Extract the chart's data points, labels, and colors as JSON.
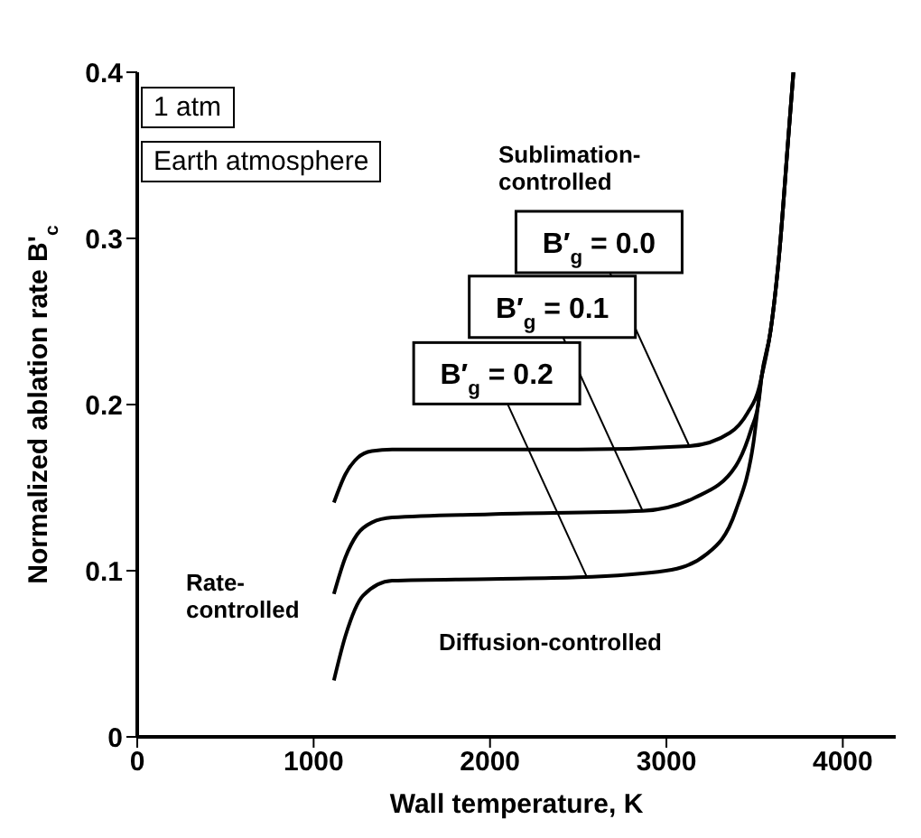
{
  "chart_data": {
    "type": "line",
    "xlabel": "Wall temperature,  K",
    "ylabel": "Normalized ablation rate B'$_{c}$",
    "xlim": [
      0,
      4300
    ],
    "xticks": [
      0,
      1000,
      2000,
      3000,
      4000
    ],
    "ylim": [
      0,
      0.4
    ],
    "yticks": [
      0,
      0.1,
      0.2,
      0.3,
      0.4
    ],
    "marker": "none",
    "line_style": "solid",
    "series": [
      {
        "color": "#000000",
        "x": [
          1115,
          1180,
          1250,
          1330,
          1445,
          1800,
          2500,
          3130,
          3360,
          3460,
          3525,
          3540,
          3590,
          3640,
          3690,
          3720
        ],
        "values": [
          0.141,
          0.158,
          0.168,
          0.172,
          0.173,
          0.173,
          0.173,
          0.175,
          0.183,
          0.195,
          0.21,
          0.217,
          0.244,
          0.291,
          0.359,
          0.4
        ]
      },
      {
        "color": "#000000",
        "x": [
          1115,
          1180,
          1248,
          1330,
          1445,
          2000,
          2865,
          3162,
          3393,
          3480,
          3525,
          3540,
          3590,
          3640,
          3690,
          3720
        ],
        "values": [
          0.086,
          0.108,
          0.122,
          0.129,
          0.132,
          0.134,
          0.136,
          0.144,
          0.163,
          0.185,
          0.203,
          0.217,
          0.244,
          0.291,
          0.359,
          0.4
        ]
      },
      {
        "color": "#000000",
        "x": [
          1115,
          1181,
          1280,
          1445,
          2000,
          2500,
          2997,
          3228,
          3393,
          3492,
          3540,
          3590,
          3640,
          3690,
          3720
        ],
        "values": [
          0.034,
          0.061,
          0.085,
          0.094,
          0.095,
          0.096,
          0.1,
          0.11,
          0.136,
          0.176,
          0.217,
          0.244,
          0.291,
          0.359,
          0.4
        ]
      }
    ],
    "annotations": [
      "1 atm",
      "Earth atmosphere",
      "Sublimation-\ncontrolled",
      "Rate-\ncontrolled",
      "Diffusion-controlled",
      {
        "text": "B′$_{g}$ = 0.0",
        "x": 3130,
        "y": 0.175
      },
      {
        "text": "B′$_{g}$ = 0.1",
        "x": 2865,
        "y": 0.136
      },
      {
        "text": "B′$_{g}$ = 0.2",
        "x": 2550,
        "y": 0.096
      }
    ]
  }
}
